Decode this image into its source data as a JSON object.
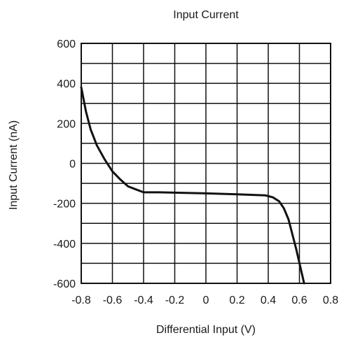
{
  "chart_data": {
    "type": "line",
    "title": "Input Current",
    "xlabel": "Differential Input (V)",
    "ylabel": "Input Current (nA)",
    "xlim": [
      -0.8,
      0.8
    ],
    "ylim": [
      -600,
      600
    ],
    "x_ticks": [
      "-0.8",
      "-0.6",
      "-0.4",
      "-0.2",
      "0",
      "0.2",
      "0.4",
      "0.6",
      "0.8"
    ],
    "y_ticks": [
      "600",
      "400",
      "200",
      "0",
      "-200",
      "-400",
      "-600"
    ],
    "grid": true,
    "series": [
      {
        "values": [
          {
            "x": -0.8,
            "y": 380
          },
          {
            "x": -0.77,
            "y": 260
          },
          {
            "x": -0.74,
            "y": 170
          },
          {
            "x": -0.7,
            "y": 90
          },
          {
            "x": -0.65,
            "y": 20
          },
          {
            "x": -0.6,
            "y": -40
          },
          {
            "x": -0.55,
            "y": -80
          },
          {
            "x": -0.5,
            "y": -115
          },
          {
            "x": -0.45,
            "y": -130
          },
          {
            "x": -0.4,
            "y": -145
          },
          {
            "x": -0.3,
            "y": -145
          },
          {
            "x": 0.0,
            "y": -150
          },
          {
            "x": 0.2,
            "y": -155
          },
          {
            "x": 0.38,
            "y": -160
          },
          {
            "x": 0.43,
            "y": -170
          },
          {
            "x": 0.47,
            "y": -190
          },
          {
            "x": 0.5,
            "y": -225
          },
          {
            "x": 0.53,
            "y": -280
          },
          {
            "x": 0.58,
            "y": -430
          },
          {
            "x": 0.63,
            "y": -600
          }
        ]
      }
    ]
  }
}
